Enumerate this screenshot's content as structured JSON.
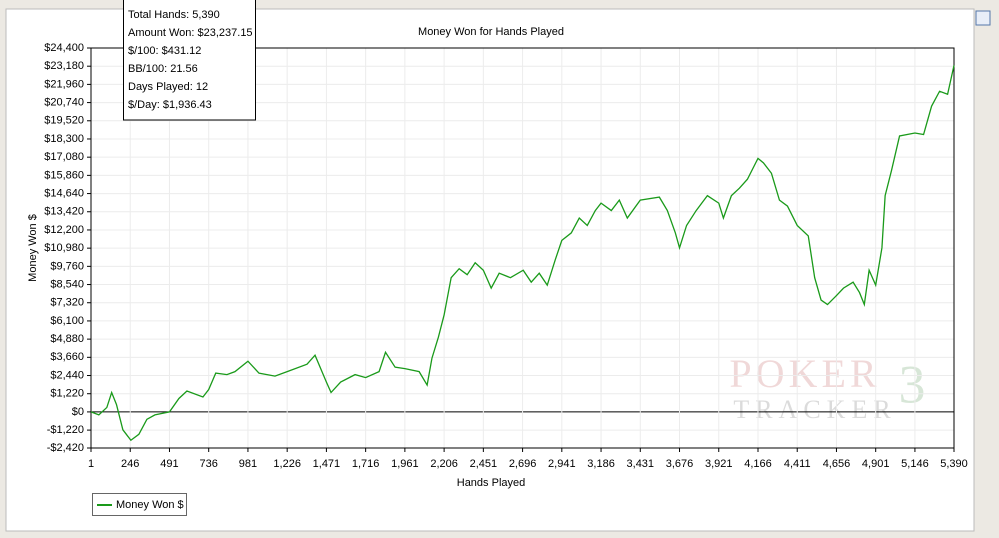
{
  "chart_data": {
    "type": "line",
    "title": "Money Won for Hands Played",
    "x_label": "Hands Played",
    "y_label": "Money Won $",
    "tooltip": [
      "Total Hands: 5,390",
      "Amount Won: $23,237.15",
      "$/100: $431.12",
      "BB/100: 21.56",
      "Days Played: 12",
      "$/Day: $1,936.43"
    ],
    "watermark": [
      "POKER",
      "TRACKER",
      "3"
    ],
    "grid": true,
    "xlim": [
      1,
      5390
    ],
    "ylim": [
      -2420,
      24400
    ],
    "xticks": [
      1,
      246,
      491,
      736,
      981,
      {
        "value": 1226,
        "label": "1,226"
      },
      {
        "value": 1471,
        "label": "1,471"
      },
      {
        "value": 1716,
        "label": "1,716"
      },
      {
        "value": 1961,
        "label": "1,961"
      },
      {
        "value": 2206,
        "label": "2,206"
      },
      {
        "value": 2451,
        "label": "2,451"
      },
      {
        "value": 2696,
        "label": "2,696"
      },
      {
        "value": 2941,
        "label": "2,941"
      },
      {
        "value": 3186,
        "label": "3,186"
      },
      {
        "value": 3431,
        "label": "3,431"
      },
      {
        "value": 3676,
        "label": "3,676"
      },
      {
        "value": 3921,
        "label": "3,921"
      },
      {
        "value": 4166,
        "label": "4,166"
      },
      {
        "value": 4411,
        "label": "4,411"
      },
      {
        "value": 4656,
        "label": "4,656"
      },
      {
        "value": 4901,
        "label": "4,901"
      },
      {
        "value": 5146,
        "label": "5,146"
      },
      {
        "value": 5390,
        "label": "5,390"
      }
    ],
    "yticks": [
      {
        "value": -2420,
        "label": "-$2,420"
      },
      {
        "value": -1220,
        "label": "-$1,220"
      },
      {
        "value": 0,
        "label": "$0"
      },
      {
        "value": 1220,
        "label": "$1,220"
      },
      {
        "value": 2440,
        "label": "$2,440"
      },
      {
        "value": 3660,
        "label": "$3,660"
      },
      {
        "value": 4880,
        "label": "$4,880"
      },
      {
        "value": 6100,
        "label": "$6,100"
      },
      {
        "value": 7320,
        "label": "$7,320"
      },
      {
        "value": 8540,
        "label": "$8,540"
      },
      {
        "value": 9760,
        "label": "$9,760"
      },
      {
        "value": 10980,
        "label": "$10,980"
      },
      {
        "value": 12200,
        "label": "$12,200"
      },
      {
        "value": 13420,
        "label": "$13,420"
      },
      {
        "value": 14640,
        "label": "$14,640"
      },
      {
        "value": 15860,
        "label": "$15,860"
      },
      {
        "value": 17080,
        "label": "$17,080"
      },
      {
        "value": 18300,
        "label": "$18,300"
      },
      {
        "value": 19520,
        "label": "$19,520"
      },
      {
        "value": 20740,
        "label": "$20,740"
      },
      {
        "value": 21960,
        "label": "$21,960"
      },
      {
        "value": 23180,
        "label": "$23,180"
      },
      {
        "value": 24400,
        "label": "$24,400"
      }
    ],
    "x": [
      1,
      50,
      100,
      130,
      160,
      200,
      250,
      300,
      350,
      400,
      491,
      550,
      600,
      700,
      736,
      780,
      850,
      900,
      981,
      1050,
      1150,
      1226,
      1350,
      1400,
      1471,
      1500,
      1560,
      1650,
      1716,
      1800,
      1840,
      1900,
      1961,
      2050,
      2100,
      2130,
      2170,
      2206,
      2250,
      2300,
      2350,
      2400,
      2451,
      2500,
      2550,
      2620,
      2700,
      2750,
      2800,
      2850,
      2900,
      2941,
      3000,
      3050,
      3100,
      3150,
      3186,
      3250,
      3300,
      3350,
      3431,
      3550,
      3600,
      3650,
      3676,
      3720,
      3780,
      3850,
      3921,
      3950,
      4000,
      4050,
      4100,
      4166,
      4200,
      4250,
      4300,
      4350,
      4411,
      4480,
      4520,
      4560,
      4600,
      4656,
      4700,
      4760,
      4800,
      4830,
      4860,
      4901,
      4940,
      4960,
      5000,
      5050,
      5146,
      5200,
      5250,
      5300,
      5350,
      5390
    ],
    "series": [
      {
        "name": "Money Won $",
        "color": "#1a9a1a",
        "values": [
          0,
          -200,
          300,
          1300,
          500,
          -1200,
          -1900,
          -1500,
          -500,
          -200,
          0,
          900,
          1400,
          1000,
          1500,
          2600,
          2500,
          2700,
          3400,
          2600,
          2400,
          2700,
          3200,
          3800,
          2000,
          1300,
          2000,
          2500,
          2300,
          2700,
          4000,
          3000,
          2900,
          2700,
          1800,
          3600,
          5000,
          6500,
          9000,
          9600,
          9200,
          10000,
          9500,
          8300,
          9300,
          9000,
          9500,
          8700,
          9300,
          8500,
          10200,
          11500,
          12000,
          13000,
          12500,
          13500,
          14000,
          13500,
          14200,
          13000,
          14200,
          14400,
          13500,
          12000,
          11000,
          12500,
          13500,
          14500,
          14000,
          13000,
          14500,
          15000,
          15600,
          17000,
          16700,
          16000,
          14200,
          13800,
          12500,
          11800,
          9000,
          7500,
          7200,
          7800,
          8300,
          8700,
          8000,
          7200,
          9500,
          8500,
          11000,
          14500,
          16200,
          18500,
          18700,
          18600,
          20500,
          21500,
          21300,
          23237.15
        ]
      }
    ]
  }
}
